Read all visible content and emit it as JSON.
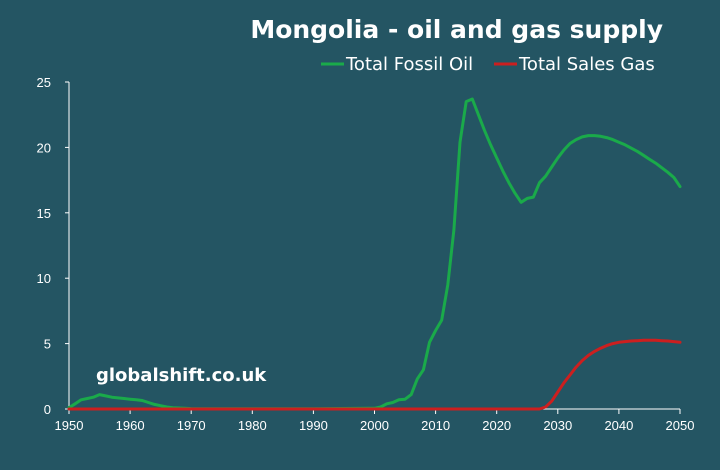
{
  "chart_data": {
    "type": "line",
    "title": "Mongolia - oil and gas supply",
    "xlabel": "",
    "ylabel": "",
    "xlim": [
      1950,
      2050
    ],
    "ylim": [
      0,
      25
    ],
    "x_ticks": [
      1950,
      1960,
      1970,
      1980,
      1990,
      2000,
      2010,
      2020,
      2030,
      2040,
      2050
    ],
    "y_ticks": [
      0,
      5,
      10,
      15,
      20,
      25
    ],
    "grid": false,
    "legend_position": "top-right",
    "annotation": "globalshift.co.uk",
    "series": [
      {
        "name": "Total Fossil Oil",
        "color": "#1aaa4a",
        "points": [
          [
            1950,
            0.1
          ],
          [
            1951,
            0.4
          ],
          [
            1952,
            0.7
          ],
          [
            1953,
            0.8
          ],
          [
            1954,
            0.9
          ],
          [
            1955,
            1.1
          ],
          [
            1956,
            1.0
          ],
          [
            1957,
            0.9
          ],
          [
            1958,
            0.85
          ],
          [
            1959,
            0.8
          ],
          [
            1960,
            0.75
          ],
          [
            1961,
            0.7
          ],
          [
            1962,
            0.65
          ],
          [
            1963,
            0.5
          ],
          [
            1964,
            0.35
          ],
          [
            1965,
            0.25
          ],
          [
            1966,
            0.15
          ],
          [
            1967,
            0.1
          ],
          [
            1968,
            0.08
          ],
          [
            1969,
            0.05
          ],
          [
            1970,
            0.03
          ],
          [
            1980,
            0.02
          ],
          [
            1990,
            0.02
          ],
          [
            1999,
            0.05
          ],
          [
            2000,
            0.05
          ],
          [
            2001,
            0.15
          ],
          [
            2002,
            0.4
          ],
          [
            2003,
            0.5
          ],
          [
            2004,
            0.7
          ],
          [
            2005,
            0.75
          ],
          [
            2006,
            1.1
          ],
          [
            2007,
            2.3
          ],
          [
            2008,
            3.0
          ],
          [
            2009,
            5.1
          ],
          [
            2010,
            6.0
          ],
          [
            2011,
            6.8
          ],
          [
            2012,
            9.5
          ],
          [
            2013,
            13.7
          ],
          [
            2014,
            20.4
          ],
          [
            2015,
            23.5
          ],
          [
            2016,
            23.7
          ],
          [
            2017,
            22.5
          ],
          [
            2018,
            21.3
          ],
          [
            2019,
            20.2
          ],
          [
            2020,
            19.2
          ],
          [
            2021,
            18.2
          ],
          [
            2022,
            17.3
          ],
          [
            2023,
            16.5
          ],
          [
            2024,
            15.8
          ],
          [
            2025,
            16.1
          ],
          [
            2026,
            16.2
          ],
          [
            2027,
            17.3
          ],
          [
            2028,
            17.8
          ],
          [
            2029,
            18.5
          ],
          [
            2030,
            19.2
          ],
          [
            2031,
            19.8
          ],
          [
            2032,
            20.3
          ],
          [
            2033,
            20.6
          ],
          [
            2034,
            20.8
          ],
          [
            2035,
            20.9
          ],
          [
            2036,
            20.9
          ],
          [
            2037,
            20.85
          ],
          [
            2038,
            20.75
          ],
          [
            2039,
            20.6
          ],
          [
            2040,
            20.4
          ],
          [
            2041,
            20.2
          ],
          [
            2042,
            19.95
          ],
          [
            2043,
            19.7
          ],
          [
            2044,
            19.4
          ],
          [
            2045,
            19.1
          ],
          [
            2046,
            18.8
          ],
          [
            2047,
            18.45
          ],
          [
            2048,
            18.1
          ],
          [
            2049,
            17.7
          ],
          [
            2050,
            17.0
          ]
        ]
      },
      {
        "name": "Total Sales Gas",
        "color": "#cc1f1f",
        "points": [
          [
            1950,
            0
          ],
          [
            2000,
            0
          ],
          [
            2027,
            0
          ],
          [
            2028,
            0.15
          ],
          [
            2029,
            0.6
          ],
          [
            2030,
            1.3
          ],
          [
            2031,
            2.0
          ],
          [
            2032,
            2.6
          ],
          [
            2033,
            3.2
          ],
          [
            2034,
            3.7
          ],
          [
            2035,
            4.1
          ],
          [
            2036,
            4.4
          ],
          [
            2037,
            4.65
          ],
          [
            2038,
            4.85
          ],
          [
            2039,
            5.0
          ],
          [
            2040,
            5.1
          ],
          [
            2041,
            5.15
          ],
          [
            2042,
            5.2
          ],
          [
            2043,
            5.22
          ],
          [
            2044,
            5.25
          ],
          [
            2045,
            5.25
          ],
          [
            2046,
            5.25
          ],
          [
            2047,
            5.22
          ],
          [
            2048,
            5.2
          ],
          [
            2049,
            5.15
          ],
          [
            2050,
            5.1
          ]
        ]
      }
    ]
  }
}
